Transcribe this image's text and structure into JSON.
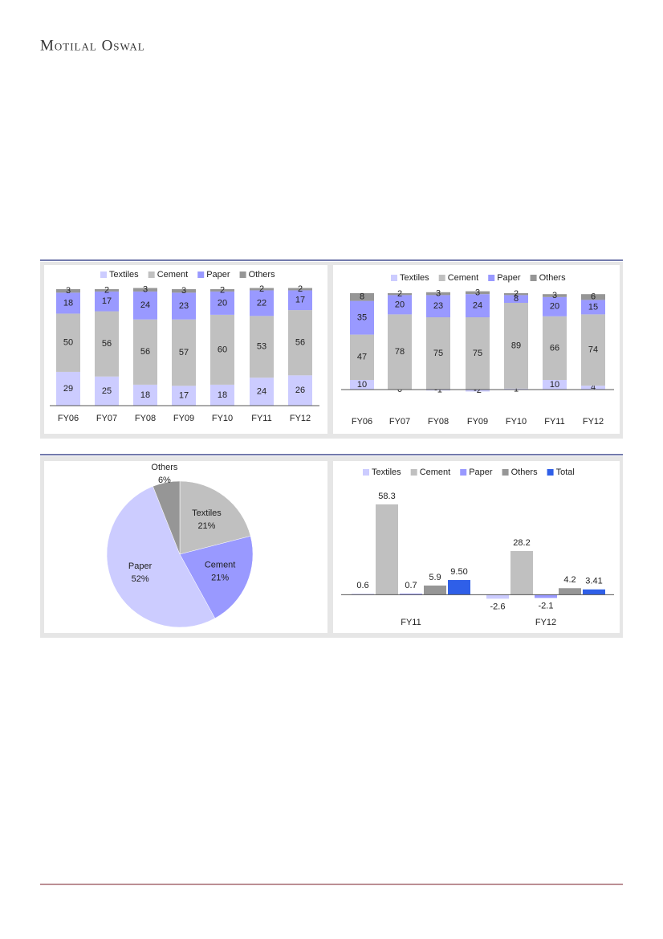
{
  "header": {
    "brand": "Motilal Oswal"
  },
  "chart_data": [
    {
      "type": "stacked_bar",
      "categories": [
        "FY06",
        "FY07",
        "FY08",
        "FY09",
        "FY10",
        "FY11",
        "FY12"
      ],
      "series": [
        {
          "name": "Textiles",
          "color": "#ccccff",
          "values": [
            29,
            25,
            18,
            17,
            18,
            24,
            26
          ]
        },
        {
          "name": "Cement",
          "color": "#c0c0c0",
          "values": [
            50,
            56,
            56,
            57,
            60,
            53,
            56
          ]
        },
        {
          "name": "Paper",
          "color": "#9999ff",
          "values": [
            18,
            17,
            24,
            23,
            20,
            22,
            17
          ]
        },
        {
          "name": "Others",
          "color": "#969696",
          "values": [
            3,
            2,
            3,
            3,
            2,
            2,
            2
          ]
        }
      ],
      "ylim": [
        0,
        100
      ]
    },
    {
      "type": "stacked_bar",
      "categories": [
        "FY06",
        "FY07",
        "FY08",
        "FY09",
        "FY10",
        "FY11",
        "FY12"
      ],
      "series": [
        {
          "name": "Textiles",
          "color": "#ccccff",
          "values": [
            10,
            0,
            -1,
            -2,
            1,
            10,
            4
          ]
        },
        {
          "name": "Cement",
          "color": "#c0c0c0",
          "values": [
            47,
            78,
            75,
            75,
            89,
            66,
            74
          ]
        },
        {
          "name": "Paper",
          "color": "#9999ff",
          "values": [
            35,
            20,
            23,
            24,
            8,
            20,
            15
          ]
        },
        {
          "name": "Others",
          "color": "#969696",
          "values": [
            8,
            2,
            3,
            3,
            2,
            3,
            6
          ]
        }
      ],
      "ylim": [
        -5,
        100
      ]
    },
    {
      "type": "pie",
      "categories": [
        "Textiles",
        "Cement",
        "Paper",
        "Others"
      ],
      "values": [
        21,
        21,
        52,
        6
      ],
      "value_labels": [
        "21%",
        "21%",
        "52%",
        "6%"
      ],
      "colors": [
        "#c0c0c0",
        "#9999ff",
        "#ccccff",
        "#969696"
      ]
    },
    {
      "type": "bar",
      "categories": [
        "FY11",
        "FY12"
      ],
      "series": [
        {
          "name": "Textiles",
          "color": "#ccccff",
          "values": [
            0.6,
            -2.6
          ]
        },
        {
          "name": "Cement",
          "color": "#c0c0c0",
          "values": [
            58.3,
            28.2
          ]
        },
        {
          "name": "Paper",
          "color": "#9999ff",
          "values": [
            0.7,
            -2.1
          ]
        },
        {
          "name": "Others",
          "color": "#969696",
          "values": [
            5.9,
            4.2
          ]
        },
        {
          "name": "Total",
          "color": "#2f5fe8",
          "values": [
            9.5,
            3.41
          ],
          "value_labels": [
            "9.50",
            "3.41"
          ]
        }
      ],
      "ylim": [
        -5,
        65
      ]
    }
  ]
}
